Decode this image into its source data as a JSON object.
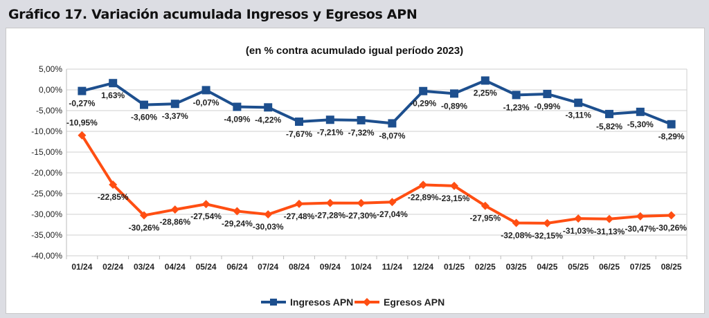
{
  "title": "Gráfico 17. Variación acumulada Ingresos y Egresos APN",
  "chart_data": {
    "type": "line",
    "title": "",
    "subtitle": "(en % contra acumulado igual período 2023)",
    "xlabel": "",
    "ylabel": "",
    "ylim": [
      -40,
      5
    ],
    "yticks": [
      "5,00%",
      "0,00%",
      "-5,00%",
      "-10,00%",
      "-15,00%",
      "-20,00%",
      "-25,00%",
      "-30,00%",
      "-35,00%",
      "-40,00%"
    ],
    "grid": true,
    "legend": "bottom",
    "categories": [
      "01/24",
      "02/24",
      "03/24",
      "04/24",
      "05/24",
      "06/24",
      "07/24",
      "08/24",
      "09/24",
      "10/24",
      "11/24",
      "12/24",
      "01/25",
      "02/25",
      "03/25",
      "04/25",
      "05/25",
      "06/25",
      "07/25",
      "08/25"
    ],
    "series": [
      {
        "name": "Ingresos APN",
        "color": "#1d4f8e",
        "marker": "square",
        "values": [
          -0.27,
          1.63,
          -3.6,
          -3.37,
          -0.07,
          -4.09,
          -4.22,
          -7.67,
          -7.21,
          -7.32,
          -8.07,
          -0.29,
          -0.89,
          2.25,
          -1.23,
          -0.99,
          -3.11,
          -5.82,
          -5.3,
          -8.29
        ],
        "labels": [
          "-0,27%",
          "1,63%",
          "-3,60%",
          "-3,37%",
          "-0,07%",
          "-4,09%",
          "-4,22%",
          "-7,67%",
          "-7,21%",
          "-7,32%",
          "-8,07%",
          "-0,29%",
          "-0,89%",
          "2,25%",
          "-1,23%",
          "-0,99%",
          "-3,11%",
          "-5,82%",
          "-5,30%",
          "-8,29%"
        ]
      },
      {
        "name": "Egresos APN",
        "color": "#ff4e12",
        "marker": "diamond",
        "values": [
          -10.95,
          -22.85,
          -30.26,
          -28.86,
          -27.54,
          -29.24,
          -30.03,
          -27.48,
          -27.28,
          -27.3,
          -27.04,
          -22.89,
          -23.15,
          -27.95,
          -32.08,
          -32.15,
          -31.03,
          -31.13,
          -30.47,
          -30.26
        ],
        "labels": [
          "-10,95%",
          "-22,85%",
          "-30,26%",
          "-28,86%",
          "-27,54%",
          "-29,24%",
          "-30,03%",
          "-27,48%",
          "-27,28%",
          "-27,30%",
          "-27,04%",
          "-22,89%",
          "-23,15%",
          "-27,95%",
          "-32,08%",
          "-32,15%",
          "-31,03%",
          "-31,13%",
          "-30,47%",
          "-30,26%"
        ]
      }
    ]
  }
}
